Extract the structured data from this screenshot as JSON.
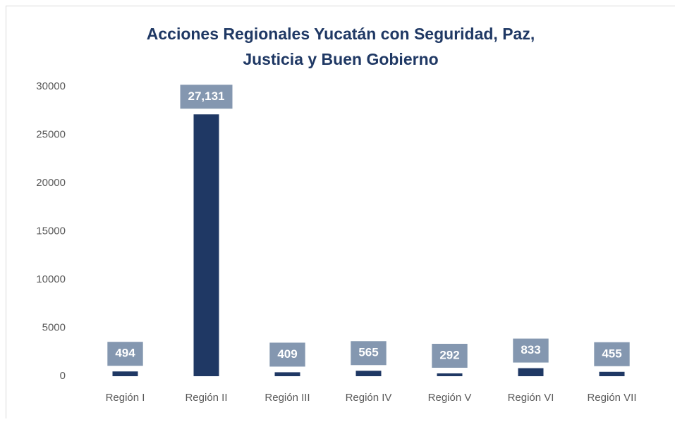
{
  "chart_data": {
    "type": "bar",
    "title": [
      "Acciones Regionales Yucatán con Seguridad, Paz,",
      "Justicia y Buen Gobierno"
    ],
    "categories": [
      "Región I",
      "Región II",
      "Región III",
      "Región IV",
      "Región V",
      "Región VI",
      "Región VII"
    ],
    "values": [
      494,
      27131,
      409,
      565,
      292,
      833,
      455
    ],
    "value_labels": [
      "494",
      "27,131",
      "409",
      "565",
      "292",
      "833",
      "455"
    ],
    "color": "#1f3864",
    "label_color": "#8497b0",
    "ylim": [
      0,
      30000
    ],
    "yticks": [
      0,
      5000,
      10000,
      15000,
      20000,
      25000,
      30000
    ],
    "grid": false
  }
}
